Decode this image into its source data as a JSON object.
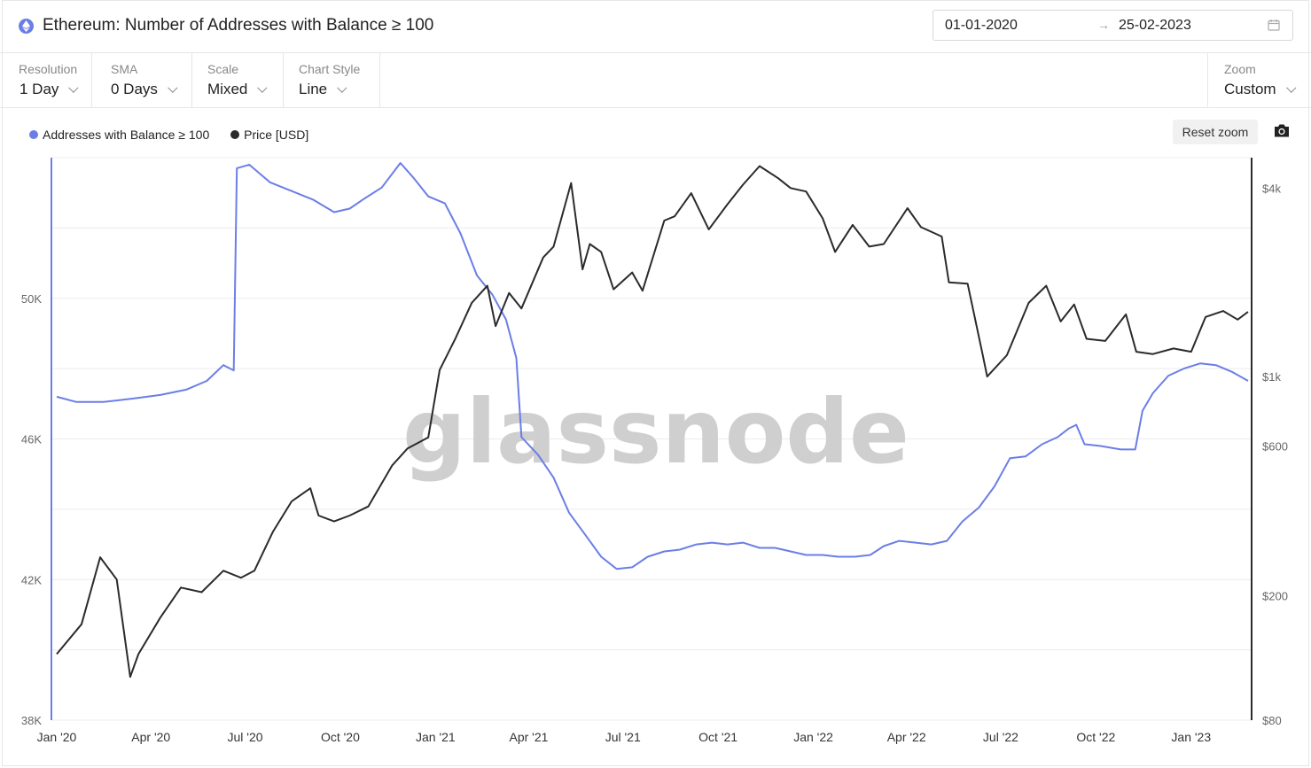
{
  "header": {
    "title": "Ethereum: Number of Addresses with Balance ≥ 100",
    "date_from": "01-01-2020",
    "date_arrow": "→",
    "date_to": "25-02-2023"
  },
  "controls": {
    "resolution": {
      "label": "Resolution",
      "value": "1 Day"
    },
    "sma": {
      "label": "SMA",
      "value": "0 Days"
    },
    "scale": {
      "label": "Scale",
      "value": "Mixed"
    },
    "chart_style": {
      "label": "Chart Style",
      "value": "Line"
    },
    "zoom": {
      "label": "Zoom",
      "value": "Custom"
    }
  },
  "toolbar": {
    "reset_zoom": "Reset zoom"
  },
  "watermark": "glassnode",
  "colors": {
    "addresses": "#6b7ee6",
    "price": "#2b2b2b",
    "grid": "#ececec"
  },
  "chart_data": {
    "type": "line",
    "title": "Ethereum: Number of Addresses with Balance ≥ 100",
    "x_ticks": [
      "Jan '20",
      "Apr '20",
      "Jul '20",
      "Oct '20",
      "Jan '21",
      "Apr '21",
      "Jul '21",
      "Oct '21",
      "Jan '22",
      "Apr '22",
      "Jul '22",
      "Oct '22",
      "Jan '23"
    ],
    "x_tick_dates": [
      "2020-01-01",
      "2020-04-01",
      "2020-07-01",
      "2020-10-01",
      "2021-01-01",
      "2021-04-01",
      "2021-07-01",
      "2021-10-01",
      "2022-01-01",
      "2022-04-01",
      "2022-07-01",
      "2022-10-01",
      "2023-01-01"
    ],
    "x_range": [
      "2020-01-01",
      "2023-02-25"
    ],
    "left_axis": {
      "scale": "linear",
      "range": [
        38000,
        54000
      ],
      "ticks": [
        38000,
        42000,
        46000,
        50000
      ],
      "tick_labels": [
        "38K",
        "42K",
        "46K",
        "50K"
      ]
    },
    "right_axis": {
      "scale": "log",
      "range": [
        80,
        5000
      ],
      "ticks": [
        80,
        200,
        600,
        1000,
        4000
      ],
      "tick_labels": [
        "$80",
        "$200",
        "$600",
        "$1k",
        "$4k"
      ]
    },
    "grid": true,
    "legend_position": "top-left",
    "series": [
      {
        "name": "Addresses with Balance ≥ 100",
        "axis": "left",
        "color": "#6b7ee6",
        "x": [
          "2020-01-01",
          "2020-01-20",
          "2020-02-15",
          "2020-03-15",
          "2020-04-10",
          "2020-05-05",
          "2020-05-25",
          "2020-06-10",
          "2020-06-20",
          "2020-06-23",
          "2020-07-05",
          "2020-07-25",
          "2020-08-15",
          "2020-09-05",
          "2020-09-25",
          "2020-10-10",
          "2020-10-25",
          "2020-11-10",
          "2020-11-28",
          "2020-12-10",
          "2020-12-25",
          "2021-01-10",
          "2021-01-25",
          "2021-02-10",
          "2021-02-25",
          "2021-03-10",
          "2021-03-20",
          "2021-03-25",
          "2021-04-10",
          "2021-04-25",
          "2021-05-10",
          "2021-05-25",
          "2021-06-10",
          "2021-06-25",
          "2021-07-10",
          "2021-07-25",
          "2021-08-10",
          "2021-08-25",
          "2021-09-10",
          "2021-09-25",
          "2021-10-10",
          "2021-10-25",
          "2021-11-10",
          "2021-11-25",
          "2021-12-10",
          "2021-12-25",
          "2022-01-10",
          "2022-01-25",
          "2022-02-10",
          "2022-02-25",
          "2022-03-10",
          "2022-03-25",
          "2022-04-10",
          "2022-04-25",
          "2022-05-10",
          "2022-05-25",
          "2022-06-10",
          "2022-06-25",
          "2022-07-10",
          "2022-07-25",
          "2022-08-10",
          "2022-08-25",
          "2022-09-05",
          "2022-09-12",
          "2022-09-20",
          "2022-10-05",
          "2022-10-25",
          "2022-11-08",
          "2022-11-15",
          "2022-11-25",
          "2022-12-10",
          "2022-12-25",
          "2023-01-10",
          "2023-01-25",
          "2023-02-10",
          "2023-02-25"
        ],
        "values": [
          47200,
          47050,
          47050,
          47150,
          47250,
          47400,
          47650,
          48100,
          47950,
          53700,
          53800,
          53300,
          53050,
          52800,
          52450,
          52550,
          52850,
          53150,
          53850,
          53450,
          52900,
          52700,
          51850,
          50650,
          50100,
          49400,
          48300,
          46050,
          45550,
          44900,
          43900,
          43300,
          42650,
          42300,
          42350,
          42650,
          42800,
          42850,
          43000,
          43050,
          43000,
          43050,
          42900,
          42900,
          42800,
          42700,
          42700,
          42650,
          42650,
          42700,
          42950,
          43100,
          43050,
          43000,
          43100,
          43650,
          44050,
          44650,
          45450,
          45500,
          45850,
          46050,
          46300,
          46400,
          45850,
          45800,
          45700,
          45700,
          46800,
          47300,
          47800,
          48000,
          48150,
          48100,
          47900,
          47650
        ]
      },
      {
        "name": "Price [USD]",
        "axis": "right",
        "color": "#2b2b2b",
        "x": [
          "2020-01-01",
          "2020-01-25",
          "2020-02-12",
          "2020-02-28",
          "2020-03-12",
          "2020-03-20",
          "2020-04-10",
          "2020-04-30",
          "2020-05-20",
          "2020-06-10",
          "2020-06-27",
          "2020-07-10",
          "2020-07-28",
          "2020-08-15",
          "2020-09-02",
          "2020-09-10",
          "2020-09-25",
          "2020-10-10",
          "2020-10-28",
          "2020-11-20",
          "2020-12-05",
          "2020-12-25",
          "2021-01-05",
          "2021-01-20",
          "2021-02-05",
          "2021-02-20",
          "2021-02-28",
          "2021-03-13",
          "2021-03-25",
          "2021-04-15",
          "2021-04-25",
          "2021-05-12",
          "2021-05-23",
          "2021-05-30",
          "2021-06-10",
          "2021-06-22",
          "2021-07-10",
          "2021-07-20",
          "2021-08-10",
          "2021-08-20",
          "2021-09-05",
          "2021-09-22",
          "2021-10-10",
          "2021-10-25",
          "2021-11-10",
          "2021-11-28",
          "2021-12-10",
          "2021-12-25",
          "2022-01-10",
          "2022-01-22",
          "2022-02-08",
          "2022-02-24",
          "2022-03-10",
          "2022-04-02",
          "2022-04-15",
          "2022-05-05",
          "2022-05-12",
          "2022-05-30",
          "2022-06-13",
          "2022-06-18",
          "2022-07-07",
          "2022-07-28",
          "2022-08-14",
          "2022-08-28",
          "2022-09-10",
          "2022-09-22",
          "2022-10-10",
          "2022-10-30",
          "2022-11-09",
          "2022-11-25",
          "2022-12-15",
          "2023-01-01",
          "2023-01-15",
          "2023-02-01",
          "2023-02-15",
          "2023-02-25"
        ],
        "values": [
          130,
          162,
          265,
          225,
          110,
          130,
          170,
          212,
          205,
          240,
          228,
          240,
          320,
          400,
          440,
          360,
          345,
          360,
          385,
          520,
          590,
          640,
          1050,
          1320,
          1720,
          1950,
          1450,
          1850,
          1650,
          2400,
          2600,
          4150,
          2200,
          2650,
          2500,
          1900,
          2150,
          1880,
          3150,
          3250,
          3850,
          2950,
          3550,
          4100,
          4700,
          4300,
          4000,
          3900,
          3200,
          2500,
          3050,
          2600,
          2650,
          3450,
          3000,
          2800,
          2000,
          1980,
          1200,
          1000,
          1170,
          1720,
          1950,
          1500,
          1700,
          1320,
          1300,
          1580,
          1200,
          1180,
          1230,
          1200,
          1550,
          1620,
          1520,
          1610
        ]
      }
    ]
  }
}
